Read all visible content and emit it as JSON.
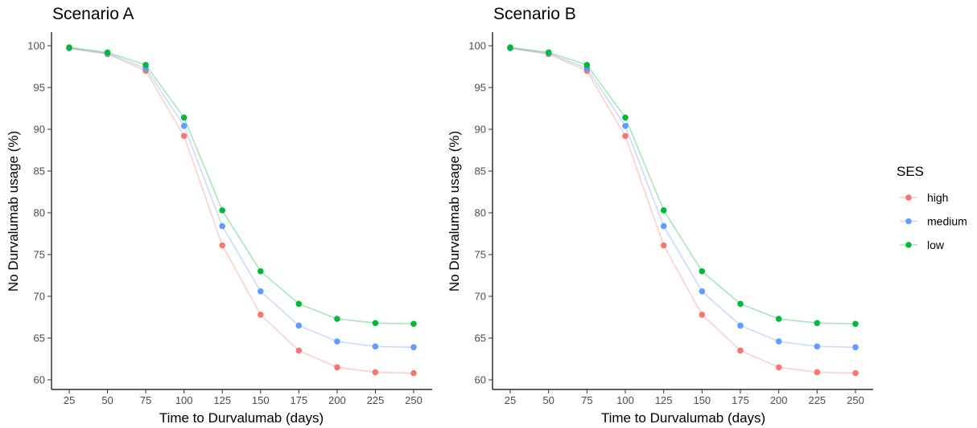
{
  "chart_data": [
    {
      "type": "line",
      "title": "Scenario A",
      "xlabel": "Time to Durvalumab (days)",
      "ylabel": "No Durvalumab usage (%)",
      "x": [
        25,
        50,
        75,
        100,
        125,
        150,
        175,
        200,
        225,
        250
      ],
      "xticks": [
        "25",
        "50",
        "75",
        "100",
        "125",
        "150",
        "175",
        "200",
        "225",
        "250"
      ],
      "yticks": [
        "60",
        "65",
        "70",
        "75",
        "80",
        "85",
        "90",
        "95",
        "100"
      ],
      "ylim": [
        59.4,
        101.6
      ],
      "grid": false,
      "series": [
        {
          "name": "high",
          "color": "#F8766D",
          "values": [
            99.7,
            99.0,
            97.0,
            89.2,
            76.1,
            67.8,
            63.5,
            61.5,
            60.9,
            60.8
          ]
        },
        {
          "name": "medium",
          "color": "#619CFF",
          "values": [
            99.7,
            99.1,
            97.3,
            90.4,
            78.4,
            70.6,
            66.5,
            64.6,
            64.0,
            63.9
          ]
        },
        {
          "name": "low",
          "color": "#00BA38",
          "values": [
            99.8,
            99.2,
            97.7,
            91.4,
            80.3,
            73.0,
            69.1,
            67.3,
            66.8,
            66.7
          ]
        }
      ]
    },
    {
      "type": "line",
      "title": "Scenario B",
      "xlabel": "Time to Durvalumab (days)",
      "ylabel": "No Durvalumab usage (%)",
      "x": [
        25,
        50,
        75,
        100,
        125,
        150,
        175,
        200,
        225,
        250
      ],
      "xticks": [
        "25",
        "50",
        "75",
        "100",
        "125",
        "150",
        "175",
        "200",
        "225",
        "250"
      ],
      "yticks": [
        "60",
        "65",
        "70",
        "75",
        "80",
        "85",
        "90",
        "95",
        "100"
      ],
      "ylim": [
        59.4,
        101.6
      ],
      "grid": false,
      "series": [
        {
          "name": "high",
          "color": "#F8766D",
          "values": [
            99.7,
            99.0,
            97.0,
            89.2,
            76.1,
            67.8,
            63.5,
            61.5,
            60.9,
            60.8
          ]
        },
        {
          "name": "medium",
          "color": "#619CFF",
          "values": [
            99.7,
            99.1,
            97.3,
            90.4,
            78.4,
            70.6,
            66.5,
            64.6,
            64.0,
            63.9
          ]
        },
        {
          "name": "low",
          "color": "#00BA38",
          "values": [
            99.8,
            99.2,
            97.7,
            91.4,
            80.3,
            73.0,
            69.1,
            67.3,
            66.8,
            66.7
          ]
        }
      ]
    }
  ],
  "legend": {
    "title": "SES",
    "placement": "right",
    "items": [
      {
        "label": "high",
        "color": "#F8766D"
      },
      {
        "label": "medium",
        "color": "#619CFF"
      },
      {
        "label": "low",
        "color": "#00BA38"
      }
    ]
  }
}
